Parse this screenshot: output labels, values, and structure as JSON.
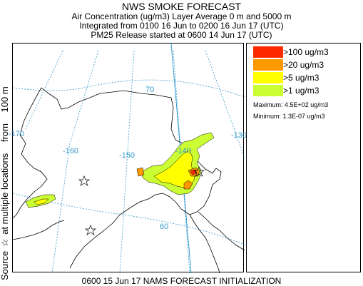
{
  "header": {
    "title": "NWS SMOKE FORECAST",
    "line2": "Air Concentration (ug/m3) Layer Average    0 m and  5000 m",
    "line3": "Integrated from 0100 16 Jun to 0200 16 Jun 17 (UTC)",
    "line4": "PM25 Release started at 0600 14 Jun 17 (UTC)"
  },
  "side_label": {
    "prefix": "Source",
    "star": "☆",
    "text": "at multiple locations",
    "from": "from",
    "height": "100 m"
  },
  "map": {
    "lon_labels": [
      "-170",
      "-160",
      "-150",
      "-140",
      "-130"
    ],
    "lat_labels": [
      "70",
      "60"
    ]
  },
  "legend": {
    "items": [
      {
        "label": ">100 ug/m3",
        "color": "#ff2a00"
      },
      {
        "label": ">20 ug/m3",
        "color": "#ff9900"
      },
      {
        "label": ">5 ug/m3",
        "color": "#ffff00"
      },
      {
        "label": ">1 ug/m3",
        "color": "#ccff33"
      }
    ],
    "maximum": "Maximum: 4.5E+02 ug/m3",
    "minimum": "Minimum: 1.3E-07 ug/m3"
  },
  "footer": "0600 15 Jun 17 NAMS FORECAST INITIALIZATION",
  "colors": {
    "gridline": "#3399cc",
    "coast": "#000000"
  }
}
